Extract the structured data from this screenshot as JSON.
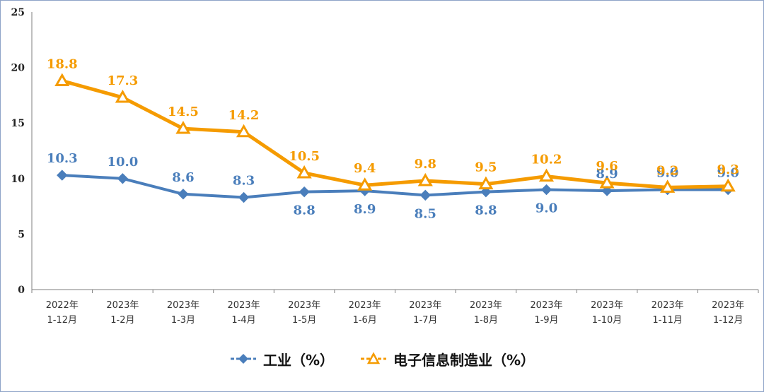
{
  "chart_data": {
    "type": "line",
    "categories": [
      [
        "2022年",
        "1-12月"
      ],
      [
        "2023年",
        "1-2月"
      ],
      [
        "2023年",
        "1-3月"
      ],
      [
        "2023年",
        "1-4月"
      ],
      [
        "2023年",
        "1-5月"
      ],
      [
        "2023年",
        "1-6月"
      ],
      [
        "2023年",
        "1-7月"
      ],
      [
        "2023年",
        "1-8月"
      ],
      [
        "2023年",
        "1-9月"
      ],
      [
        "2023年",
        "1-10月"
      ],
      [
        "2023年",
        "1-11月"
      ],
      [
        "2023年",
        "1-12月"
      ]
    ],
    "series": [
      {
        "name": "工业（%）",
        "color": "#4a7ebb",
        "marker": "diamond",
        "values": [
          10.3,
          10.0,
          8.6,
          8.3,
          8.8,
          8.9,
          8.5,
          8.8,
          9.0,
          8.9,
          9.0,
          9.0
        ],
        "labels": [
          "10.3",
          "10.0",
          "8.6",
          "8.3",
          "8.8",
          "8.9",
          "8.5",
          "8.8",
          "9.0",
          "8.9",
          "9.0",
          "9.0"
        ]
      },
      {
        "name": "电子信息制造业（%）",
        "color": "#f59b00",
        "marker": "triangle",
        "values": [
          18.8,
          17.3,
          14.5,
          14.2,
          10.5,
          9.4,
          9.8,
          9.5,
          10.2,
          9.6,
          9.2,
          9.3
        ],
        "labels": [
          "18.8",
          "17.3",
          "14.5",
          "14.2",
          "10.5",
          "9.4",
          "9.8",
          "9.5",
          "10.2",
          "9.6",
          "9.2",
          "9.3"
        ]
      }
    ],
    "ylim": [
      0,
      25
    ],
    "yticks": [
      "0",
      "5",
      "10",
      "15",
      "20",
      "25"
    ],
    "grid": false,
    "legend": "bottom"
  }
}
